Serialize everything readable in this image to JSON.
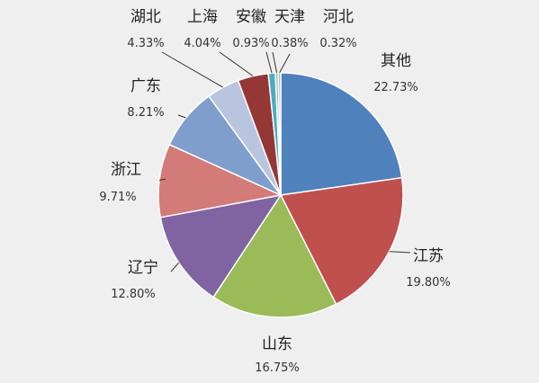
{
  "chart_data": {
    "type": "pie",
    "title": "",
    "legend": "none",
    "slices": [
      {
        "label": "其他",
        "value": 22.73,
        "display": "22.73%",
        "color": "#4f81bd"
      },
      {
        "label": "江苏",
        "value": 19.8,
        "display": "19.80%",
        "color": "#c0504d"
      },
      {
        "label": "山东",
        "value": 16.75,
        "display": "16.75%",
        "color": "#9bbb59"
      },
      {
        "label": "辽宁",
        "value": 12.8,
        "display": "12.80%",
        "color": "#8064a2"
      },
      {
        "label": "浙江",
        "value": 9.71,
        "display": "9.71%",
        "color": "#d27b78"
      },
      {
        "label": "广东",
        "value": 8.21,
        "display": "8.21%",
        "color": "#7f9ecb"
      },
      {
        "label": "湖北",
        "value": 4.33,
        "display": "4.33%",
        "color": "#b9c4de"
      },
      {
        "label": "上海",
        "value": 4.04,
        "display": "4.04%",
        "color": "#953735"
      },
      {
        "label": "安徽",
        "value": 0.93,
        "display": "0.93%",
        "color": "#4bacc6"
      },
      {
        "label": "天津",
        "value": 0.38,
        "display": "0.38%",
        "color": "#a8c27a"
      },
      {
        "label": "河北",
        "value": 0.32,
        "display": "0.32%",
        "color": "#8ea8d4"
      }
    ]
  },
  "colors": {
    "background": "#efefef",
    "stroke": "#ffffff",
    "leader": "#333333"
  }
}
